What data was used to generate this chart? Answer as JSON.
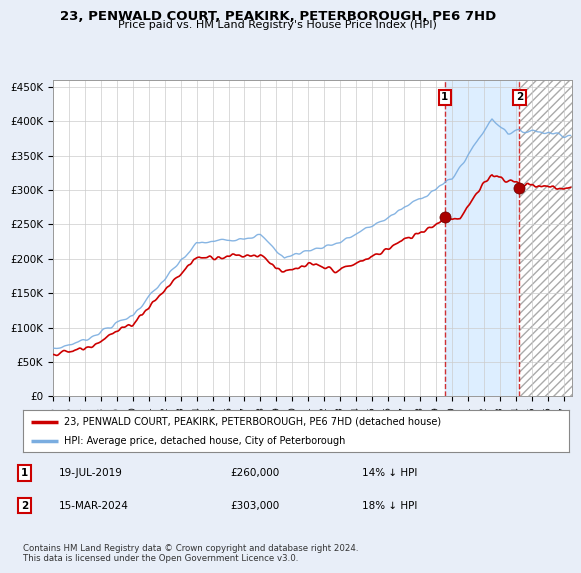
{
  "title": "23, PENWALD COURT, PEAKIRK, PETERBOROUGH, PE6 7HD",
  "subtitle": "Price paid vs. HM Land Registry's House Price Index (HPI)",
  "ylabel_ticks": [
    "£0",
    "£50K",
    "£100K",
    "£150K",
    "£200K",
    "£250K",
    "£300K",
    "£350K",
    "£400K",
    "£450K"
  ],
  "ytick_values": [
    0,
    50000,
    100000,
    150000,
    200000,
    250000,
    300000,
    350000,
    400000,
    450000
  ],
  "ylim": [
    0,
    460000
  ],
  "xlim_start": 1995.0,
  "xlim_end": 2027.5,
  "hpi_color": "#7aade0",
  "property_color": "#cc0000",
  "background_color": "#e8eef8",
  "plot_bg_color": "#ffffff",
  "grid_color": "#cccccc",
  "transaction1_date": "19-JUL-2019",
  "transaction1_price": 260000,
  "transaction1_label": "14% ↓ HPI",
  "transaction1_x": 2019.54,
  "transaction2_date": "15-MAR-2024",
  "transaction2_price": 303000,
  "transaction2_label": "18% ↓ HPI",
  "transaction2_x": 2024.21,
  "legend_property": "23, PENWALD COURT, PEAKIRK, PETERBOROUGH, PE6 7HD (detached house)",
  "legend_hpi": "HPI: Average price, detached house, City of Peterborough",
  "footer": "Contains HM Land Registry data © Crown copyright and database right 2024.\nThis data is licensed under the Open Government Licence v3.0.",
  "shade_between_color": "#ddeeff",
  "hatch_color": "#bbbbbb"
}
